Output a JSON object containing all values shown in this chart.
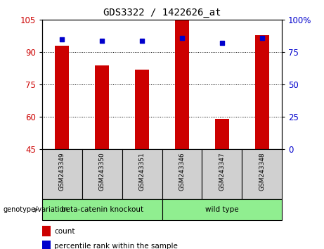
{
  "title": "GDS3322 / 1422626_at",
  "samples": [
    "GSM243349",
    "GSM243350",
    "GSM243351",
    "GSM243346",
    "GSM243347",
    "GSM243348"
  ],
  "counts": [
    93,
    84,
    82,
    105,
    59,
    98
  ],
  "percentiles": [
    85,
    84,
    84,
    86,
    82,
    86
  ],
  "ylim_left": [
    45,
    105
  ],
  "ylim_right": [
    0,
    100
  ],
  "yticks_left": [
    45,
    60,
    75,
    90,
    105
  ],
  "yticks_right": [
    0,
    25,
    50,
    75,
    100
  ],
  "bar_color": "#cc0000",
  "marker_color": "#0000cc",
  "groups": [
    {
      "label": "beta-catenin knockout",
      "color": "#90ee90"
    },
    {
      "label": "wild type",
      "color": "#90ee90"
    }
  ],
  "group_label": "genotype/variation",
  "legend_count": "count",
  "legend_percentile": "percentile rank within the sample",
  "bar_bottom": 45,
  "bar_width": 0.35
}
